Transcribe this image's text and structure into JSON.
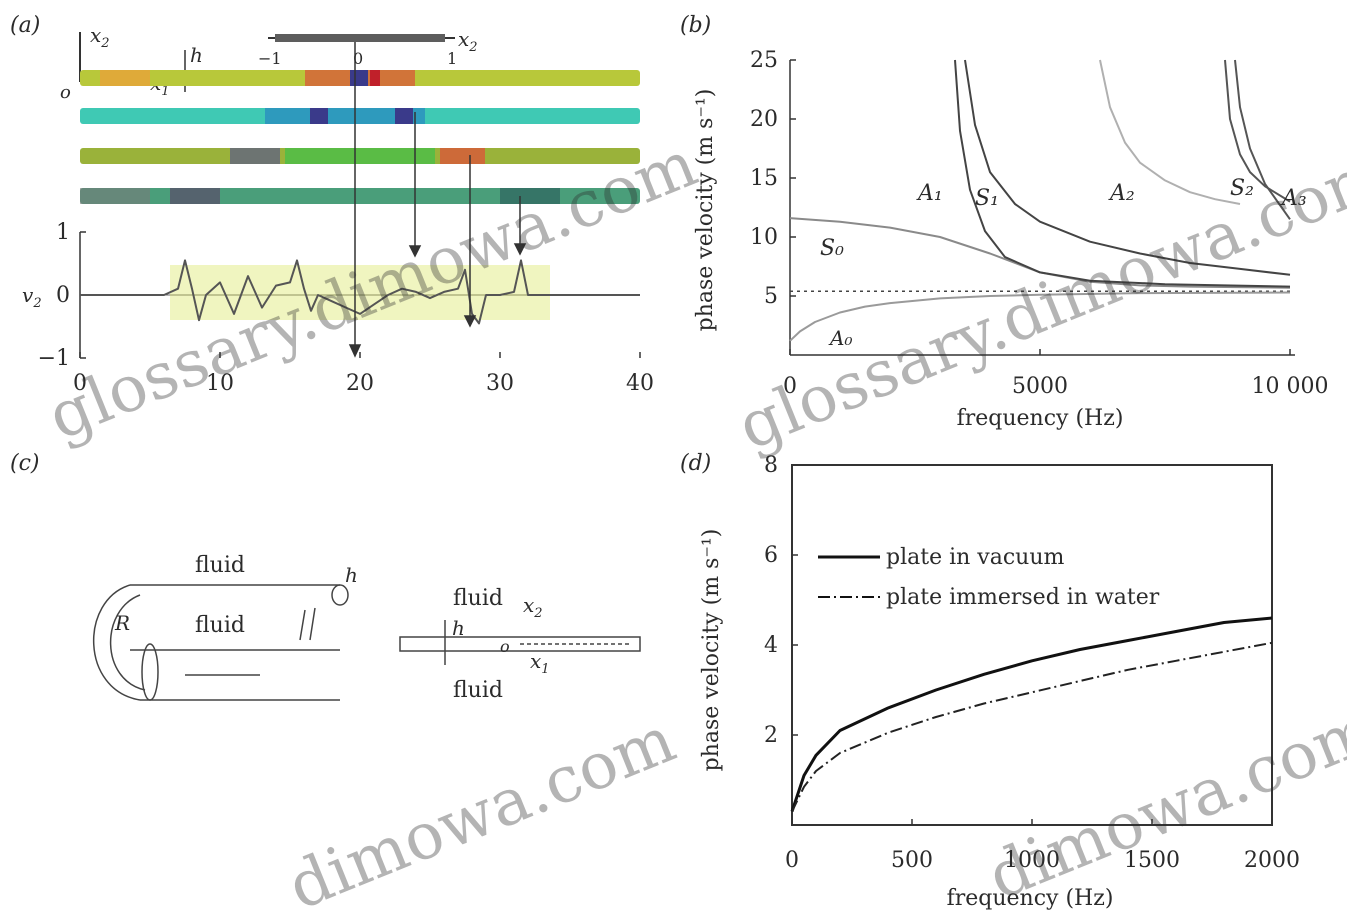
{
  "panels": {
    "a": {
      "label": "(a)",
      "axis_labels": {
        "x2": "x",
        "x2_sub": "2",
        "x1": "x",
        "x1_sub": "1",
        "h": "h",
        "o": "o"
      },
      "inset_ticks": [
        "−1",
        "0",
        "1"
      ],
      "inset_label": "x",
      "inset_label_sub": "2",
      "ylabel": "v",
      "ylabel_sub": "2",
      "strip_colors": [
        "#b8c83a",
        "#3fc9b4",
        "#9ab23a",
        "#4a9e7a"
      ]
    },
    "b": {
      "label": "(b)"
    },
    "c": {
      "label": "(c)",
      "cylinder": {
        "top_fluid": "fluid",
        "inner_fluid": "fluid",
        "radius": "R",
        "thickness": "h"
      },
      "plate": {
        "top_fluid": "fluid",
        "bottom_fluid": "fluid",
        "thickness": "h",
        "origin": "o",
        "x1": "x",
        "x1_sub": "1",
        "x2": "x",
        "x2_sub": "2"
      }
    },
    "d": {
      "label": "(d)"
    }
  },
  "chart_data": [
    {
      "id": "a",
      "type": "line",
      "xlim": [
        0,
        40
      ],
      "ylim": [
        -1,
        1
      ],
      "xticks": [
        "0",
        "10",
        "20",
        "30",
        "40"
      ],
      "yticks": [
        "1",
        "0",
        "−1"
      ],
      "xlabel": "",
      "ylabel": "v2",
      "grid": false,
      "series": [
        {
          "x": [
            0,
            6,
            7,
            7.5,
            8,
            8.5,
            9,
            10,
            11,
            12,
            13,
            14,
            15,
            15.5,
            16,
            16.5,
            17,
            18,
            19,
            20,
            21,
            22,
            23,
            24,
            25,
            26,
            27,
            27.5,
            28,
            28.5,
            29,
            30,
            31,
            31.5,
            32,
            40
          ],
          "y": [
            0,
            0,
            0.1,
            0.55,
            0.1,
            -0.4,
            0,
            0.2,
            -0.3,
            0.3,
            -0.2,
            0.15,
            0.2,
            0.55,
            0.1,
            -0.25,
            0,
            -0.1,
            -0.2,
            -0.3,
            -0.15,
            0,
            0.1,
            0.05,
            -0.05,
            0.05,
            0.1,
            0.4,
            -0.3,
            -0.45,
            0,
            0,
            0.05,
            0.55,
            0,
            0
          ]
        }
      ]
    },
    {
      "id": "b",
      "type": "line",
      "xlim": [
        0,
        10000
      ],
      "ylim": [
        0,
        25
      ],
      "xticks": [
        "0",
        "5000",
        "10 000"
      ],
      "yticks": [
        "5",
        "10",
        "15",
        "20",
        "25"
      ],
      "xlabel": "frequency (Hz)",
      "ylabel": "phase velocity (m s⁻¹)",
      "grid": false,
      "dashed_reference_y": 5.4,
      "mode_labels": [
        "A₀",
        "S₀",
        "A₁",
        "S₁",
        "A₂",
        "S₂",
        "A₃"
      ],
      "series": [
        {
          "name": "S0",
          "x": [
            0,
            1000,
            2000,
            3000,
            4000,
            5000,
            6000,
            7000,
            8000,
            10000
          ],
          "y": [
            11.6,
            11.3,
            10.8,
            10.0,
            8.6,
            7.0,
            6.2,
            5.9,
            5.8,
            5.7
          ]
        },
        {
          "name": "A0",
          "x": [
            0,
            200,
            500,
            1000,
            1500,
            2000,
            3000,
            4000,
            5000,
            7000,
            10000
          ],
          "y": [
            1.2,
            2.0,
            2.8,
            3.6,
            4.1,
            4.4,
            4.8,
            5.0,
            5.1,
            5.25,
            5.3
          ]
        },
        {
          "name": "A1",
          "x": [
            3300,
            3400,
            3600,
            3900,
            4300,
            5000,
            6000,
            7500,
            10000
          ],
          "y": [
            25,
            19,
            14,
            10.5,
            8.3,
            7.0,
            6.3,
            6.0,
            5.8
          ]
        },
        {
          "name": "S1",
          "x": [
            3500,
            3700,
            4000,
            4500,
            5000,
            6000,
            7000,
            8000,
            9000,
            10000
          ],
          "y": [
            25,
            19.5,
            15.5,
            12.8,
            11.3,
            9.6,
            8.6,
            7.8,
            7.3,
            6.8
          ]
        },
        {
          "name": "A2",
          "x": [
            6200,
            6400,
            6700,
            7000,
            7500,
            8000,
            8500,
            9000
          ],
          "y": [
            25,
            21,
            18,
            16.3,
            14.8,
            13.8,
            13.2,
            12.8
          ]
        },
        {
          "name": "S2",
          "x": [
            8700,
            8800,
            9000,
            9200,
            9500,
            10000
          ],
          "y": [
            25,
            20,
            17,
            15.5,
            14.3,
            13.0
          ]
        },
        {
          "name": "A3",
          "x": [
            8900,
            9000,
            9200,
            9500,
            10000
          ],
          "y": [
            25,
            21,
            17.5,
            14.5,
            11.5
          ]
        }
      ]
    },
    {
      "id": "d",
      "type": "line",
      "xlim": [
        0,
        2000
      ],
      "ylim": [
        0,
        8
      ],
      "xticks": [
        "0",
        "500",
        "1000",
        "1500",
        "2000"
      ],
      "yticks": [
        "2",
        "4",
        "6",
        "8"
      ],
      "xlabel": "frequency (Hz)",
      "ylabel": "phase velocity (m s⁻¹)",
      "grid": false,
      "legend_position": "upper-left",
      "series": [
        {
          "name": "plate in vacuum",
          "style": "solid",
          "x": [
            0,
            50,
            100,
            200,
            400,
            600,
            800,
            1000,
            1200,
            1400,
            1600,
            1800,
            2000
          ],
          "y": [
            0.3,
            1.1,
            1.55,
            2.1,
            2.6,
            3.0,
            3.35,
            3.65,
            3.9,
            4.1,
            4.3,
            4.5,
            4.6
          ]
        },
        {
          "name": "plate immersed in water",
          "style": "dashdot",
          "x": [
            0,
            50,
            100,
            200,
            400,
            600,
            800,
            1000,
            1200,
            1400,
            1600,
            1800,
            2000
          ],
          "y": [
            0.3,
            0.85,
            1.2,
            1.6,
            2.05,
            2.4,
            2.7,
            2.95,
            3.2,
            3.45,
            3.65,
            3.85,
            4.05
          ]
        }
      ]
    }
  ]
}
